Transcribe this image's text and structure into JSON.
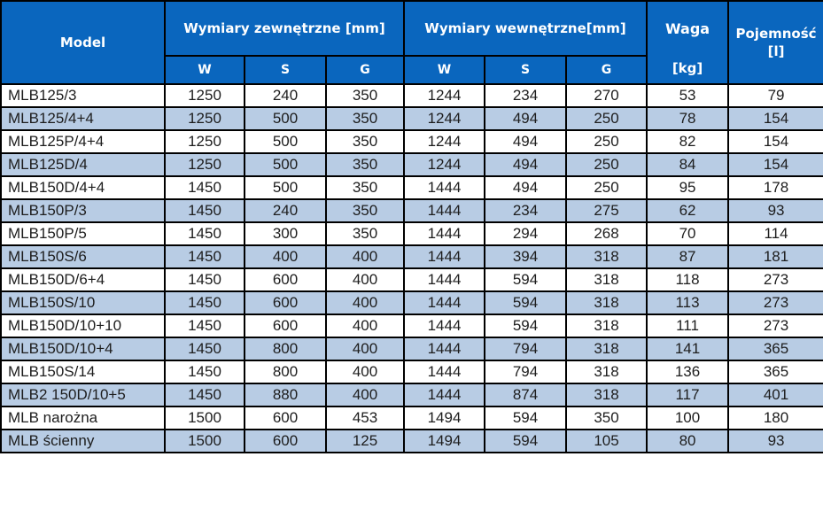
{
  "chart_data": {
    "type": "table",
    "title": "",
    "header": {
      "model": "Model",
      "group_external": "Wymiary zewnętrzne [mm]",
      "group_internal": "Wymiary wewnętrzne[mm]",
      "weight": "Waga",
      "weight_unit": "[kg]",
      "capacity": "Pojemność [l]",
      "subcolumns": [
        "W",
        "S",
        "G",
        "W",
        "S",
        "G"
      ]
    },
    "rows": [
      [
        "MLB125/3",
        "1250",
        "240",
        "350",
        "1244",
        "234",
        "270",
        "53",
        "79"
      ],
      [
        "MLB125/4+4",
        "1250",
        "500",
        "350",
        "1244",
        "494",
        "250",
        "78",
        "154"
      ],
      [
        "MLB125P/4+4",
        "1250",
        "500",
        "350",
        "1244",
        "494",
        "250",
        "82",
        "154"
      ],
      [
        "MLB125D/4",
        "1250",
        "500",
        "350",
        "1244",
        "494",
        "250",
        "84",
        "154"
      ],
      [
        "MLB150D/4+4",
        "1450",
        "500",
        "350",
        "1444",
        "494",
        "250",
        "95",
        "178"
      ],
      [
        "MLB150P/3",
        "1450",
        "240",
        "350",
        "1444",
        "234",
        "275",
        "62",
        "93"
      ],
      [
        "MLB150P/5",
        "1450",
        "300",
        "350",
        "1444",
        "294",
        "268",
        "70",
        "114"
      ],
      [
        "MLB150S/6",
        "1450",
        "400",
        "400",
        "1444",
        "394",
        "318",
        "87",
        "181"
      ],
      [
        "MLB150D/6+4",
        "1450",
        "600",
        "400",
        "1444",
        "594",
        "318",
        "118",
        "273"
      ],
      [
        "MLB150S/10",
        "1450",
        "600",
        "400",
        "1444",
        "594",
        "318",
        "113",
        "273"
      ],
      [
        "MLB150D/10+10",
        "1450",
        "600",
        "400",
        "1444",
        "594",
        "318",
        "111",
        "273"
      ],
      [
        "MLB150D/10+4",
        "1450",
        "800",
        "400",
        "1444",
        "794",
        "318",
        "141",
        "365"
      ],
      [
        "MLB150S/14",
        "1450",
        "800",
        "400",
        "1444",
        "794",
        "318",
        "136",
        "365"
      ],
      [
        "MLB2 150D/10+5",
        "1450",
        "880",
        "400",
        "1444",
        "874",
        "318",
        "117",
        "401"
      ],
      [
        "MLB narożna",
        "1500",
        "600",
        "453",
        "1494",
        "594",
        "350",
        "100",
        "180"
      ],
      [
        "MLB ścienny",
        "1500",
        "600",
        "125",
        "1494",
        "594",
        "105",
        "80",
        "93"
      ]
    ],
    "layout": {
      "stripe_pattern": "alternating starting with white",
      "grid": "black lines between all cells"
    }
  },
  "colors": {
    "header_bg": "#0a66be",
    "header_text": "#ffffff",
    "stripe_bg": "#b8cce4",
    "row_bg": "#ffffff",
    "border": "#000000",
    "body_text": "#1d1d1d"
  }
}
